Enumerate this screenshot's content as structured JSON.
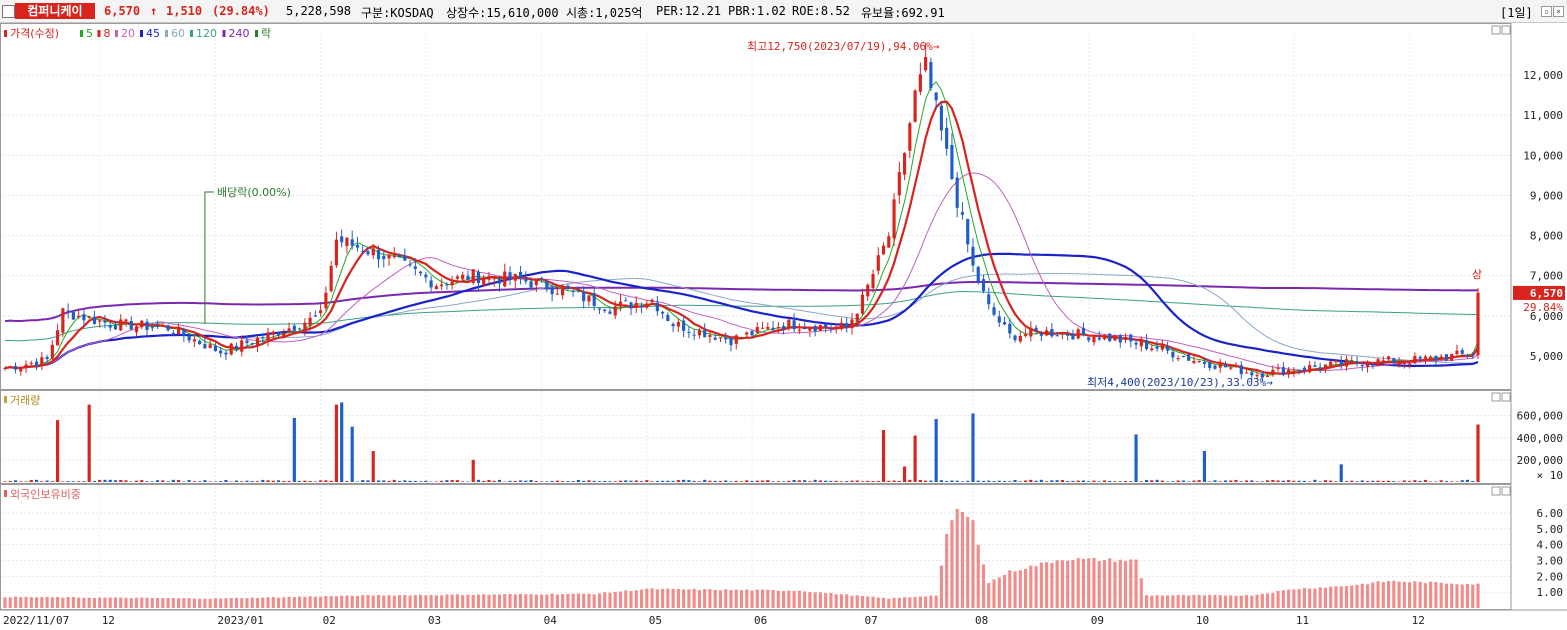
{
  "header": {
    "stock_name": "컴퍼니케이",
    "price": "6,570",
    "change": "1,510",
    "change_pct": "(29.84%)",
    "volume": "5,228,598",
    "market": "구분:KOSDAQ",
    "shares": "상장수:15,610,000",
    "market_cap": "시총:1,025억",
    "per": "PER:12.21",
    "pbr": "PBR:1.02",
    "roe": "ROE:8.52",
    "float_ratio": "유보율:692.91",
    "period": "[1일]",
    "up_color": "#d9231d",
    "down_color": "#1e5ec8"
  },
  "chart_data": [
    {
      "type": "candlestick",
      "panel": "price",
      "legend": [
        {
          "label": "가격(수정)",
          "color": "#d9231d"
        },
        {
          "label": "5",
          "color": "#22aa22"
        },
        {
          "label": "8",
          "color": "#d9231d"
        },
        {
          "label": "20",
          "color": "#c060c0"
        },
        {
          "label": "45",
          "color": "#1a23c8"
        },
        {
          "label": "60",
          "color": "#8aa8c8"
        },
        {
          "label": "120",
          "color": "#3aa08a"
        },
        {
          "label": "240",
          "color": "#7b28b0"
        },
        {
          "label": "락",
          "color": "#2a7a2a"
        }
      ],
      "ylim": [
        4200,
        13000
      ],
      "yticks": [
        "5,000",
        "6,000",
        "7,000",
        "8,000",
        "9,000",
        "10,000",
        "11,000",
        "12,000"
      ],
      "x_labels": [
        "2022/11/07",
        "12",
        "2023/01",
        "02",
        "03",
        "04",
        "05",
        "06",
        "07",
        "08",
        "09",
        "10",
        "11",
        "12"
      ],
      "close_keypoints": [
        [
          "2022/11/07",
          4700
        ],
        [
          "2022/11/17",
          4900
        ],
        [
          "2022/11/22",
          6100
        ],
        [
          "2022/12/05",
          5800
        ],
        [
          "2022/12/20",
          5700
        ],
        [
          "2023/01/03",
          5100
        ],
        [
          "2023/01/20",
          5700
        ],
        [
          "2023/02/01",
          6000
        ],
        [
          "2023/02/06",
          7900
        ],
        [
          "2023/02/17",
          7500
        ],
        [
          "2023/03/06",
          6800
        ],
        [
          "2023/03/15",
          7000
        ],
        [
          "2023/03/28",
          6900
        ],
        [
          "2023/04/10",
          6600
        ],
        [
          "2023/04/20",
          6200
        ],
        [
          "2023/05/03",
          6400
        ],
        [
          "2023/05/10",
          5800
        ],
        [
          "2023/05/25",
          5400
        ],
        [
          "2023/06/10",
          5800
        ],
        [
          "2023/06/28",
          5700
        ],
        [
          "2023/07/03",
          6400
        ],
        [
          "2023/07/10",
          8000
        ],
        [
          "2023/07/17",
          11500
        ],
        [
          "2023/07/19",
          12200
        ],
        [
          "2023/07/25",
          10000
        ],
        [
          "2023/08/01",
          7200
        ],
        [
          "2023/08/04",
          6200
        ],
        [
          "2023/08/10",
          5500
        ],
        [
          "2023/08/20",
          5600
        ],
        [
          "2023/09/05",
          5500
        ],
        [
          "2023/09/20",
          5200
        ],
        [
          "2023/10/04",
          4900
        ],
        [
          "2023/10/23",
          4550
        ],
        [
          "2023/11/03",
          4700
        ],
        [
          "2023/11/20",
          4850
        ],
        [
          "2023/12/05",
          4900
        ],
        [
          "2023/12/19",
          5060
        ],
        [
          "2023/12/20",
          6570
        ]
      ],
      "annotations": {
        "high": "최고12,750(2023/07/19),94.06%→",
        "low": "최저4,400(2023/10/23),33.03%→",
        "dividend": "배당락(0.00%)",
        "limit_up": "상",
        "last_price": "6,570",
        "last_pct": "29.84%"
      }
    },
    {
      "type": "bar",
      "panel": "volume",
      "title": "거래량",
      "yticks": [
        "200,000",
        "400,000",
        "600,000"
      ],
      "unit": "× 10",
      "spikes": [
        [
          "2022/11/21",
          560000
        ],
        [
          "2022/11/29",
          700000
        ],
        [
          "2023/01/23",
          580000
        ],
        [
          "2023/02/06",
          700000
        ],
        [
          "2023/02/07",
          720000
        ],
        [
          "2023/02/09",
          500000
        ],
        [
          "2023/02/15",
          280000
        ],
        [
          "2023/03/15",
          200000
        ],
        [
          "2023/07/07",
          470000
        ],
        [
          "2023/07/13",
          140000
        ],
        [
          "2023/07/17",
          420000
        ],
        [
          "2023/07/21",
          570000
        ],
        [
          "2023/08/01",
          620000
        ],
        [
          "2023/09/14",
          430000
        ],
        [
          "2023/10/06",
          280000
        ],
        [
          "2023/11/14",
          160000
        ],
        [
          "2023/12/20",
          520000
        ]
      ]
    },
    {
      "type": "bar",
      "panel": "foreign",
      "title": "외국인보유비중",
      "yticks": [
        "1.00",
        "2.00",
        "3.00",
        "4.00",
        "5.00",
        "6.00"
      ],
      "keypoints": [
        [
          "2022/11/07",
          0.7
        ],
        [
          "2023/01/01",
          0.6
        ],
        [
          "2023/02/15",
          0.8
        ],
        [
          "2023/04/15",
          0.9
        ],
        [
          "2023/05/01",
          1.2
        ],
        [
          "2023/06/15",
          1.1
        ],
        [
          "2023/07/10",
          0.6
        ],
        [
          "2023/07/21",
          0.8
        ],
        [
          "2023/07/25",
          4.5
        ],
        [
          "2023/07/27",
          6.3
        ],
        [
          "2023/08/01",
          5.4
        ],
        [
          "2023/08/04",
          1.6
        ],
        [
          "2023/08/10",
          2.3
        ],
        [
          "2023/08/25",
          3.1
        ],
        [
          "2023/09/14",
          3.0
        ],
        [
          "2023/09/18",
          0.8
        ],
        [
          "2023/10/20",
          0.8
        ],
        [
          "2023/11/01",
          1.2
        ],
        [
          "2023/11/15",
          1.4
        ],
        [
          "2023/11/25",
          1.7
        ],
        [
          "2023/12/20",
          1.5
        ]
      ]
    }
  ]
}
